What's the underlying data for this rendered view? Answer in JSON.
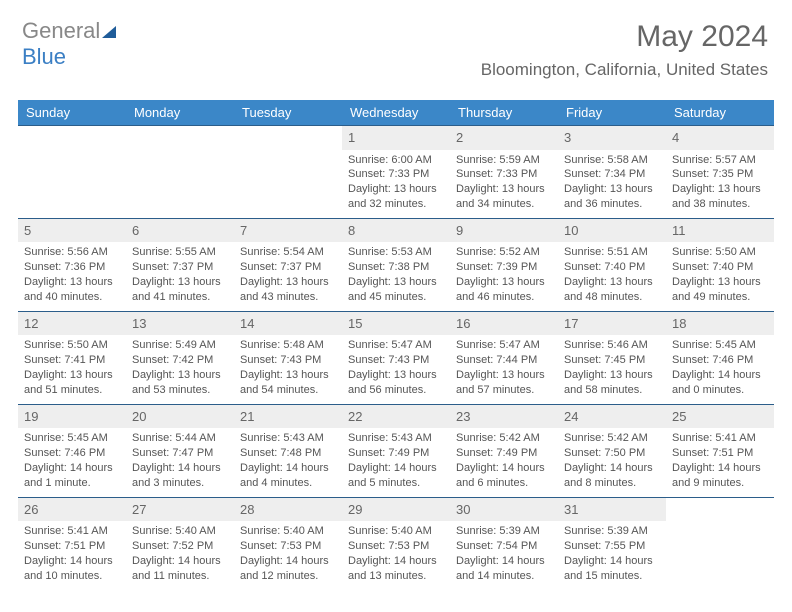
{
  "brand": {
    "part1": "General",
    "part2": "Blue"
  },
  "title": "May 2024",
  "location": "Bloomington, California, United States",
  "colors": {
    "header_bg": "#3b87c8",
    "header_fg": "#ffffff",
    "daynum_bg": "#eeeeee",
    "border": "#2b5d8a",
    "text": "#555555",
    "brand_gray": "#888888",
    "brand_blue": "#3b7fc4"
  },
  "typography": {
    "title_fontsize": 30,
    "location_fontsize": 17,
    "dayheader_fontsize": 13,
    "daynum_fontsize": 13,
    "cell_fontsize": 11
  },
  "day_headers": [
    "Sunday",
    "Monday",
    "Tuesday",
    "Wednesday",
    "Thursday",
    "Friday",
    "Saturday"
  ],
  "weeks": [
    [
      {
        "empty": true
      },
      {
        "empty": true
      },
      {
        "empty": true
      },
      {
        "day": "1",
        "sunrise": "Sunrise: 6:00 AM",
        "sunset": "Sunset: 7:33 PM",
        "daylight": "Daylight: 13 hours and 32 minutes."
      },
      {
        "day": "2",
        "sunrise": "Sunrise: 5:59 AM",
        "sunset": "Sunset: 7:33 PM",
        "daylight": "Daylight: 13 hours and 34 minutes."
      },
      {
        "day": "3",
        "sunrise": "Sunrise: 5:58 AM",
        "sunset": "Sunset: 7:34 PM",
        "daylight": "Daylight: 13 hours and 36 minutes."
      },
      {
        "day": "4",
        "sunrise": "Sunrise: 5:57 AM",
        "sunset": "Sunset: 7:35 PM",
        "daylight": "Daylight: 13 hours and 38 minutes."
      }
    ],
    [
      {
        "day": "5",
        "sunrise": "Sunrise: 5:56 AM",
        "sunset": "Sunset: 7:36 PM",
        "daylight": "Daylight: 13 hours and 40 minutes."
      },
      {
        "day": "6",
        "sunrise": "Sunrise: 5:55 AM",
        "sunset": "Sunset: 7:37 PM",
        "daylight": "Daylight: 13 hours and 41 minutes."
      },
      {
        "day": "7",
        "sunrise": "Sunrise: 5:54 AM",
        "sunset": "Sunset: 7:37 PM",
        "daylight": "Daylight: 13 hours and 43 minutes."
      },
      {
        "day": "8",
        "sunrise": "Sunrise: 5:53 AM",
        "sunset": "Sunset: 7:38 PM",
        "daylight": "Daylight: 13 hours and 45 minutes."
      },
      {
        "day": "9",
        "sunrise": "Sunrise: 5:52 AM",
        "sunset": "Sunset: 7:39 PM",
        "daylight": "Daylight: 13 hours and 46 minutes."
      },
      {
        "day": "10",
        "sunrise": "Sunrise: 5:51 AM",
        "sunset": "Sunset: 7:40 PM",
        "daylight": "Daylight: 13 hours and 48 minutes."
      },
      {
        "day": "11",
        "sunrise": "Sunrise: 5:50 AM",
        "sunset": "Sunset: 7:40 PM",
        "daylight": "Daylight: 13 hours and 49 minutes."
      }
    ],
    [
      {
        "day": "12",
        "sunrise": "Sunrise: 5:50 AM",
        "sunset": "Sunset: 7:41 PM",
        "daylight": "Daylight: 13 hours and 51 minutes."
      },
      {
        "day": "13",
        "sunrise": "Sunrise: 5:49 AM",
        "sunset": "Sunset: 7:42 PM",
        "daylight": "Daylight: 13 hours and 53 minutes."
      },
      {
        "day": "14",
        "sunrise": "Sunrise: 5:48 AM",
        "sunset": "Sunset: 7:43 PM",
        "daylight": "Daylight: 13 hours and 54 minutes."
      },
      {
        "day": "15",
        "sunrise": "Sunrise: 5:47 AM",
        "sunset": "Sunset: 7:43 PM",
        "daylight": "Daylight: 13 hours and 56 minutes."
      },
      {
        "day": "16",
        "sunrise": "Sunrise: 5:47 AM",
        "sunset": "Sunset: 7:44 PM",
        "daylight": "Daylight: 13 hours and 57 minutes."
      },
      {
        "day": "17",
        "sunrise": "Sunrise: 5:46 AM",
        "sunset": "Sunset: 7:45 PM",
        "daylight": "Daylight: 13 hours and 58 minutes."
      },
      {
        "day": "18",
        "sunrise": "Sunrise: 5:45 AM",
        "sunset": "Sunset: 7:46 PM",
        "daylight": "Daylight: 14 hours and 0 minutes."
      }
    ],
    [
      {
        "day": "19",
        "sunrise": "Sunrise: 5:45 AM",
        "sunset": "Sunset: 7:46 PM",
        "daylight": "Daylight: 14 hours and 1 minute."
      },
      {
        "day": "20",
        "sunrise": "Sunrise: 5:44 AM",
        "sunset": "Sunset: 7:47 PM",
        "daylight": "Daylight: 14 hours and 3 minutes."
      },
      {
        "day": "21",
        "sunrise": "Sunrise: 5:43 AM",
        "sunset": "Sunset: 7:48 PM",
        "daylight": "Daylight: 14 hours and 4 minutes."
      },
      {
        "day": "22",
        "sunrise": "Sunrise: 5:43 AM",
        "sunset": "Sunset: 7:49 PM",
        "daylight": "Daylight: 14 hours and 5 minutes."
      },
      {
        "day": "23",
        "sunrise": "Sunrise: 5:42 AM",
        "sunset": "Sunset: 7:49 PM",
        "daylight": "Daylight: 14 hours and 6 minutes."
      },
      {
        "day": "24",
        "sunrise": "Sunrise: 5:42 AM",
        "sunset": "Sunset: 7:50 PM",
        "daylight": "Daylight: 14 hours and 8 minutes."
      },
      {
        "day": "25",
        "sunrise": "Sunrise: 5:41 AM",
        "sunset": "Sunset: 7:51 PM",
        "daylight": "Daylight: 14 hours and 9 minutes."
      }
    ],
    [
      {
        "day": "26",
        "sunrise": "Sunrise: 5:41 AM",
        "sunset": "Sunset: 7:51 PM",
        "daylight": "Daylight: 14 hours and 10 minutes."
      },
      {
        "day": "27",
        "sunrise": "Sunrise: 5:40 AM",
        "sunset": "Sunset: 7:52 PM",
        "daylight": "Daylight: 14 hours and 11 minutes."
      },
      {
        "day": "28",
        "sunrise": "Sunrise: 5:40 AM",
        "sunset": "Sunset: 7:53 PM",
        "daylight": "Daylight: 14 hours and 12 minutes."
      },
      {
        "day": "29",
        "sunrise": "Sunrise: 5:40 AM",
        "sunset": "Sunset: 7:53 PM",
        "daylight": "Daylight: 14 hours and 13 minutes."
      },
      {
        "day": "30",
        "sunrise": "Sunrise: 5:39 AM",
        "sunset": "Sunset: 7:54 PM",
        "daylight": "Daylight: 14 hours and 14 minutes."
      },
      {
        "day": "31",
        "sunrise": "Sunrise: 5:39 AM",
        "sunset": "Sunset: 7:55 PM",
        "daylight": "Daylight: 14 hours and 15 minutes."
      },
      {
        "empty": true
      }
    ]
  ]
}
